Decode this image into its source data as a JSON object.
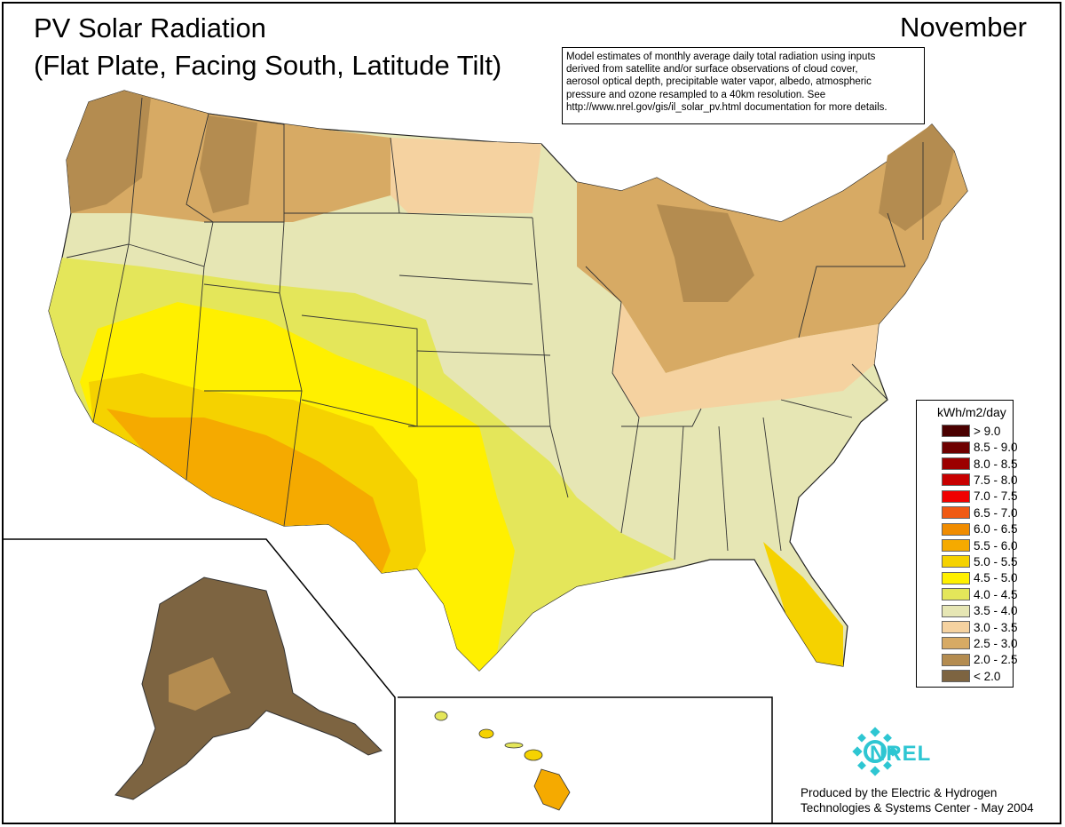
{
  "title": "PV Solar Radiation",
  "subtitle": "(Flat Plate, Facing South, Latitude Tilt)",
  "month": "November",
  "note_lines": [
    "Model estimates of monthly average daily total radiation using inputs",
    "derived from satellite and/or surface observations of cloud cover,",
    "aerosol optical depth, precipitable water vapor, albedo, atmospheric",
    "pressure and ozone resampled to a 40km resolution.  See",
    "http://www.nrel.gov/gis/il_solar_pv.html documentation for more details."
  ],
  "legend": {
    "title": "kWh/m2/day",
    "classes": [
      {
        "label": "> 9.0",
        "color": "#4a0000"
      },
      {
        "label": "8.5 - 9.0",
        "color": "#6e0000"
      },
      {
        "label": "8.0 - 8.5",
        "color": "#9c0000"
      },
      {
        "label": "7.5 - 8.0",
        "color": "#c80000"
      },
      {
        "label": "7.0 - 7.5",
        "color": "#f00000"
      },
      {
        "label": "6.5 - 7.0",
        "color": "#f05a14"
      },
      {
        "label": "6.0 - 6.5",
        "color": "#f08c00"
      },
      {
        "label": "5.5 - 6.0",
        "color": "#f5aa00"
      },
      {
        "label": "5.0 - 5.5",
        "color": "#f5d200"
      },
      {
        "label": "4.5 - 5.0",
        "color": "#fff000"
      },
      {
        "label": "4.0 - 4.5",
        "color": "#e4e65a"
      },
      {
        "label": "3.5 - 4.0",
        "color": "#e6e6b4"
      },
      {
        "label": "3.0 - 3.5",
        "color": "#f5d2a0"
      },
      {
        "label": "2.5 - 3.0",
        "color": "#d7aa64"
      },
      {
        "label": "2.0 - 2.5",
        "color": "#b48c50"
      },
      {
        "label": "< 2.0",
        "color": "#7d6441"
      }
    ]
  },
  "logo_text": "NREL",
  "credit_lines": [
    "Produced by the Electric & Hydrogen",
    "Technologies & Systems Center - May 2004"
  ]
}
